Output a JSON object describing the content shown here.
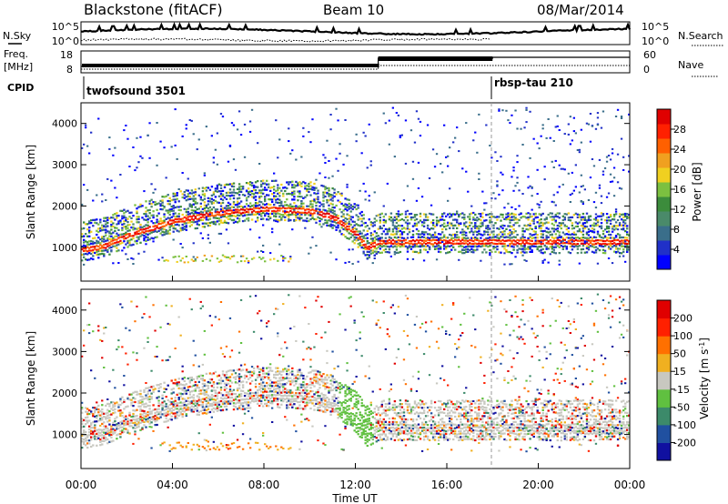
{
  "header": {
    "station": "Blackstone (fitACF)",
    "beam": "Beam 10",
    "date": "08/Mar/2014"
  },
  "noise_panel": {
    "left_label": "N.Sky",
    "right_label": "N.Search",
    "ticks_left": [
      "10^5",
      "10^0"
    ],
    "ticks_right": [
      "10^5",
      "10^0"
    ]
  },
  "freq_panel": {
    "left_label_1": "Freq.",
    "left_label_2": "[MHz]",
    "right_label": "Nave",
    "ticks_left": [
      "18",
      "8"
    ],
    "ticks_right": [
      "60",
      "0"
    ]
  },
  "cpid": {
    "label": "CPID",
    "entries": [
      {
        "name": "twofsound 3501",
        "start": "00:00"
      },
      {
        "name": "rbsp-tau 210",
        "start": "18:00"
      }
    ]
  },
  "power_panel": {
    "ylabel": "Slant Range [km]",
    "yticks": [
      "1000",
      "2000",
      "3000",
      "4000"
    ],
    "colorbar_label": "Power [dB]",
    "colorbar_ticks": [
      "4",
      "8",
      "12",
      "16",
      "20",
      "24",
      "28"
    ],
    "colors": [
      "#0000ff",
      "#2030c8",
      "#3a6e8a",
      "#4a8a6a",
      "#3c8c3c",
      "#7cc040",
      "#f0d020",
      "#f0a020",
      "#ff6000",
      "#ff2000",
      "#e00000"
    ]
  },
  "velocity_panel": {
    "ylabel": "Slant Range [km]",
    "yticks": [
      "1000",
      "2000",
      "3000",
      "4000"
    ],
    "colorbar_label": "Velocity [m s^-1]",
    "colorbar_ticks": [
      "200",
      "100",
      "50",
      "15",
      "-15",
      "-50",
      "-100",
      "-200"
    ],
    "colors": [
      "#1010a0",
      "#2050a0",
      "#3c8a6a",
      "#60c040",
      "#c8c8c0",
      "#f0b020",
      "#ff7000",
      "#ff2000",
      "#e00000"
    ]
  },
  "x_axis": {
    "label": "Time UT",
    "ticks": [
      "00:00",
      "04:00",
      "08:00",
      "12:00",
      "16:00",
      "20:00",
      "00:00"
    ]
  },
  "chart_data": {
    "type": "heatmap",
    "x_range_hours": [
      0,
      24
    ],
    "y_range_km": [
      180,
      4500
    ],
    "cpid_change_hour": 18,
    "nave_change_hour": 13,
    "main_echo_band": {
      "time_utc": [
        "00:00",
        "01:00",
        "02:00",
        "04:00",
        "06:00",
        "08:00",
        "10:00",
        "11:00",
        "12:00",
        "12:30",
        "13:00",
        "16:00",
        "18:00",
        "24:00"
      ],
      "range_km": [
        950,
        1050,
        1300,
        1650,
        1850,
        1950,
        1900,
        1750,
        1350,
        1000,
        1150,
        1150,
        1150,
        1150
      ]
    },
    "power_scale_dB": [
      0,
      30
    ],
    "velocity_scale_ms": [
      -250,
      250
    ]
  }
}
